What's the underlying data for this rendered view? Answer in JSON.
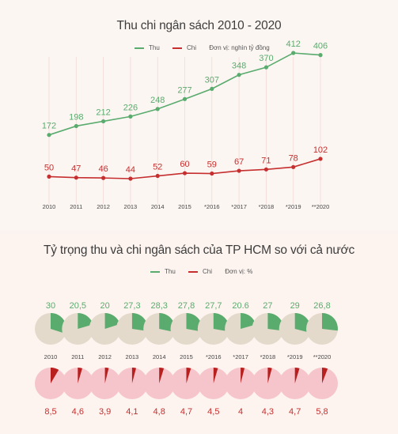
{
  "chart_data": [
    {
      "type": "line",
      "title": "Thu chi ngân sách 2010 - 2020",
      "unit_note": "Đơn vị: nghìn tỷ đồng",
      "categories": [
        "2010",
        "2011",
        "2012",
        "2013",
        "2014",
        "2015",
        "*2016",
        "*2017",
        "*2018",
        "*2019",
        "**2020"
      ],
      "series": [
        {
          "name": "Thu",
          "color": "#5aab6e",
          "values": [
            172,
            198,
            212,
            226,
            248,
            277,
            307,
            348,
            370,
            412,
            406
          ]
        },
        {
          "name": "Chi",
          "color": "#c62f2f",
          "values": [
            50,
            47,
            46,
            44,
            52,
            60,
            59,
            67,
            71,
            78,
            102
          ]
        }
      ]
    },
    {
      "type": "pie",
      "title": "Tỷ trọng thu và chi ngân sách của TP HCM so với cả nước",
      "unit_note": "Đơn vị: %",
      "categories": [
        "2010",
        "2011",
        "2012",
        "2013",
        "2014",
        "2015",
        "*2016",
        "*2017",
        "*2018",
        "*2019",
        "**2020"
      ],
      "series": [
        {
          "name": "Thu",
          "color": "#5aab6e",
          "labels": [
            "30",
            "20,5",
            "20",
            "27,3",
            "28,3",
            "27,8",
            "27,7",
            "20.6",
            "27",
            "29",
            "26,8"
          ],
          "values": [
            30,
            20.5,
            20,
            27.3,
            28.3,
            27.8,
            27.7,
            20.6,
            27,
            29,
            26.8
          ]
        },
        {
          "name": "Chi",
          "color": "#c62f2f",
          "labels": [
            "8,5",
            "4,6",
            "3,9",
            "4,1",
            "4,8",
            "4,7",
            "4,5",
            "4",
            "4,3",
            "4,7",
            "5,8"
          ],
          "values": [
            8.5,
            4.6,
            3.9,
            4.1,
            4.8,
            4.7,
            4.5,
            4,
            4.3,
            4.7,
            5.8
          ]
        }
      ]
    }
  ]
}
